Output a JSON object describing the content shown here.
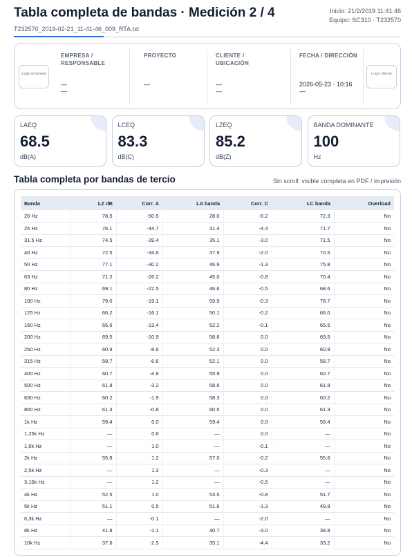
{
  "header": {
    "title": "Tabla completa de bandas · Medición 2 / 4",
    "filename": "T232570_2019-02-21_11-41-46_009_RTA.txt",
    "start": "Inicio: 21/2/2019 11:41:46",
    "device": "Equipo: SC310 · T232570"
  },
  "info": {
    "logo_left": "Logo empresa",
    "logo_right": "Logo cliente",
    "fields": [
      {
        "label": "EMPRESA / RESPONSABLE",
        "values": [
          "—",
          "—"
        ]
      },
      {
        "label": "PROYECTO",
        "values": [
          "—"
        ]
      },
      {
        "label": "CLIENTE / UBICACIÓN",
        "values": [
          "—",
          "—"
        ]
      },
      {
        "label": "FECHA / DIRECCIÓN",
        "values": [
          "2026-05-23 · 10:16",
          "—"
        ]
      }
    ]
  },
  "metrics": [
    {
      "label": "LAEQ",
      "value": "68.5",
      "unit": "dB(A)"
    },
    {
      "label": "LCEQ",
      "value": "83.3",
      "unit": "dB(C)"
    },
    {
      "label": "LZEQ",
      "value": "85.2",
      "unit": "dB(Z)"
    },
    {
      "label": "BANDA DOMINANTE",
      "value": "100",
      "unit": "Hz"
    }
  ],
  "section": {
    "title": "Tabla completa por bandas de tercio",
    "note": "Sin scroll: visible completa en PDF / impresión"
  },
  "table": {
    "columns": [
      "Banda",
      "LZ dB",
      "Corr. A",
      "LA banda",
      "Corr. C",
      "LC banda",
      "Overload"
    ],
    "rows": [
      [
        "20 Hz",
        "78.5",
        "-50.5",
        "28.0",
        "-6.2",
        "72.3",
        "No"
      ],
      [
        "25 Hz",
        "76.1",
        "-44.7",
        "31.4",
        "-4.4",
        "71.7",
        "No"
      ],
      [
        "31,5 Hz",
        "74.5",
        "-39.4",
        "35.1",
        "-3.0",
        "71.5",
        "No"
      ],
      [
        "40 Hz",
        "72.5",
        "-34.6",
        "37.9",
        "-2.0",
        "70.5",
        "No"
      ],
      [
        "50 Hz",
        "77.1",
        "-30.2",
        "46.9",
        "-1.3",
        "75.8",
        "No"
      ],
      [
        "63 Hz",
        "71.2",
        "-26.2",
        "45.0",
        "-0.8",
        "70.4",
        "No"
      ],
      [
        "80 Hz",
        "69.1",
        "-22.5",
        "46.6",
        "-0.5",
        "68.6",
        "No"
      ],
      [
        "100 Hz",
        "79.0",
        "-19.1",
        "59.9",
        "-0.3",
        "78.7",
        "No"
      ],
      [
        "125 Hz",
        "66.2",
        "-16.1",
        "50.1",
        "-0.2",
        "66.0",
        "No"
      ],
      [
        "160 Hz",
        "65.6",
        "-13.4",
        "52.2",
        "-0.1",
        "65.5",
        "No"
      ],
      [
        "200 Hz",
        "69.5",
        "-10.9",
        "58.6",
        "0.0",
        "69.5",
        "No"
      ],
      [
        "250 Hz",
        "60.9",
        "-8.6",
        "52.3",
        "0.0",
        "60.9",
        "No"
      ],
      [
        "315 Hz",
        "58.7",
        "-6.6",
        "52.1",
        "0.0",
        "58.7",
        "No"
      ],
      [
        "400 Hz",
        "60.7",
        "-4.8",
        "55.9",
        "0.0",
        "60.7",
        "No"
      ],
      [
        "500 Hz",
        "61.8",
        "-3.2",
        "58.6",
        "0.0",
        "61.8",
        "No"
      ],
      [
        "630 Hz",
        "60.2",
        "-1.9",
        "58.3",
        "0.0",
        "60.2",
        "No"
      ],
      [
        "800 Hz",
        "61.3",
        "-0.8",
        "60.5",
        "0.0",
        "61.3",
        "No"
      ],
      [
        "1k Hz",
        "59.4",
        "0.0",
        "59.4",
        "0.0",
        "59.4",
        "No"
      ],
      [
        "1,25k Hz",
        "—",
        "0.6",
        "—",
        "0.0",
        "—",
        "No"
      ],
      [
        "1,6k Hz",
        "—",
        "1.0",
        "—",
        "-0.1",
        "—",
        "No"
      ],
      [
        "2k Hz",
        "55.8",
        "1.2",
        "57.0",
        "-0.2",
        "55.6",
        "No"
      ],
      [
        "2,5k Hz",
        "—",
        "1.3",
        "—",
        "-0.3",
        "—",
        "No"
      ],
      [
        "3,15k Hz",
        "—",
        "1.2",
        "—",
        "-0.5",
        "—",
        "No"
      ],
      [
        "4k Hz",
        "52.5",
        "1.0",
        "53.5",
        "-0.8",
        "51.7",
        "No"
      ],
      [
        "5k Hz",
        "51.1",
        "0.5",
        "51.6",
        "-1.3",
        "49.8",
        "No"
      ],
      [
        "6,3k Hz",
        "—",
        "-0.1",
        "—",
        "-2.0",
        "—",
        "No"
      ],
      [
        "8k Hz",
        "41.8",
        "-1.1",
        "40.7",
        "-3.0",
        "38.8",
        "No"
      ],
      [
        "10k Hz",
        "37.6",
        "-2.5",
        "35.1",
        "-4.4",
        "33.2",
        "No"
      ]
    ]
  }
}
